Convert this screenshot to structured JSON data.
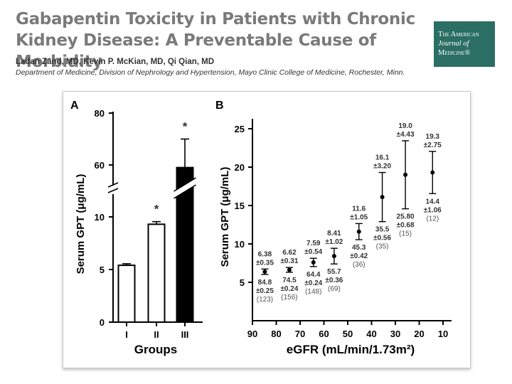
{
  "header": {
    "title": "Gabapentin Toxicity in Patients with Chronic Kidney Disease: A Preventable Cause of Morbidity",
    "authors": "Ladan Zand, MD, Kevin P. McKian, MD, Qi Qian, MD",
    "affiliation": "Department of Medicine, Division of Nephrology and Hypertension, Mayo Clinic College of Medicine, Rochester, Minn."
  },
  "journal": {
    "line1": "The American",
    "line2": "Journal of",
    "line3": "Medicine®"
  },
  "colors": {
    "title": "#7a7a7a",
    "journal_bg": "#2b6e63",
    "bar_dark": "#000000",
    "bar_light": "#ffffff"
  },
  "chart_data": [
    {
      "panel": "A",
      "type": "bar",
      "xlabel": "Groups",
      "ylabel": "Serum GPT (μg/mL)",
      "axis_break": "between 10 and 60",
      "yticks_lower": [
        "0",
        "5",
        "10"
      ],
      "yticks_upper": [
        "60",
        "80"
      ],
      "categories": [
        "I",
        "II",
        "III"
      ],
      "values": [
        5.4,
        9.3,
        59.0
      ],
      "errors": [
        0.15,
        0.25,
        11.0
      ],
      "fills": [
        "#ffffff",
        "#ffffff",
        "#000000"
      ],
      "markers": [
        "",
        "*",
        "*"
      ]
    },
    {
      "panel": "B",
      "type": "scatter",
      "xlabel": "eGFR (mL/min/1.73m²)",
      "ylabel": "Serum GPT (μg/mL)",
      "xlim": [
        90,
        10
      ],
      "ylim": [
        0,
        27
      ],
      "xticks": [
        "90",
        "80",
        "70",
        "60",
        "50",
        "40",
        "30",
        "20",
        "10"
      ],
      "yticks": [
        "5",
        "10",
        "15",
        "20",
        "25"
      ],
      "points": [
        {
          "x": 84.8,
          "y": 6.38,
          "err": 0.35,
          "mean": "6.38",
          "sd": "±0.35",
          "egfr": "84.8",
          "egfr_sd": "±0.25",
          "n": "(123)"
        },
        {
          "x": 74.5,
          "y": 6.62,
          "err": 0.31,
          "mean": "6.62",
          "sd": "±0.31",
          "egfr": "74.5",
          "egfr_sd": "±0.24",
          "n": "(156)"
        },
        {
          "x": 64.4,
          "y": 7.59,
          "err": 0.54,
          "mean": "7.59",
          "sd": "±0.54",
          "egfr": "64.4",
          "egfr_sd": "±0.24",
          "n": "(148)"
        },
        {
          "x": 55.7,
          "y": 8.41,
          "err": 1.02,
          "mean": "8.41",
          "sd": "±1.02",
          "egfr": "55.7",
          "egfr_sd": "±0.36",
          "n": "(69)"
        },
        {
          "x": 45.3,
          "y": 11.6,
          "err": 1.05,
          "mean": "11.6",
          "sd": "±1.05",
          "egfr": "45.3",
          "egfr_sd": "±0.42",
          "n": "(36)"
        },
        {
          "x": 35.5,
          "y": 16.1,
          "err": 3.2,
          "mean": "16.1",
          "sd": "±3.20",
          "egfr": "35.5",
          "egfr_sd": "±0.56",
          "n": "(35)"
        },
        {
          "x": 25.8,
          "y": 19.0,
          "err": 4.43,
          "mean": "19.0",
          "sd": "±4.43",
          "egfr": "25.80",
          "egfr_sd": "±0.68",
          "n": "(15)"
        },
        {
          "x": 14.4,
          "y": 19.3,
          "err": 2.75,
          "mean": "19.3",
          "sd": "±2.75",
          "egfr": "14.4",
          "egfr_sd": "±1.06",
          "n": "(12)"
        }
      ]
    }
  ]
}
